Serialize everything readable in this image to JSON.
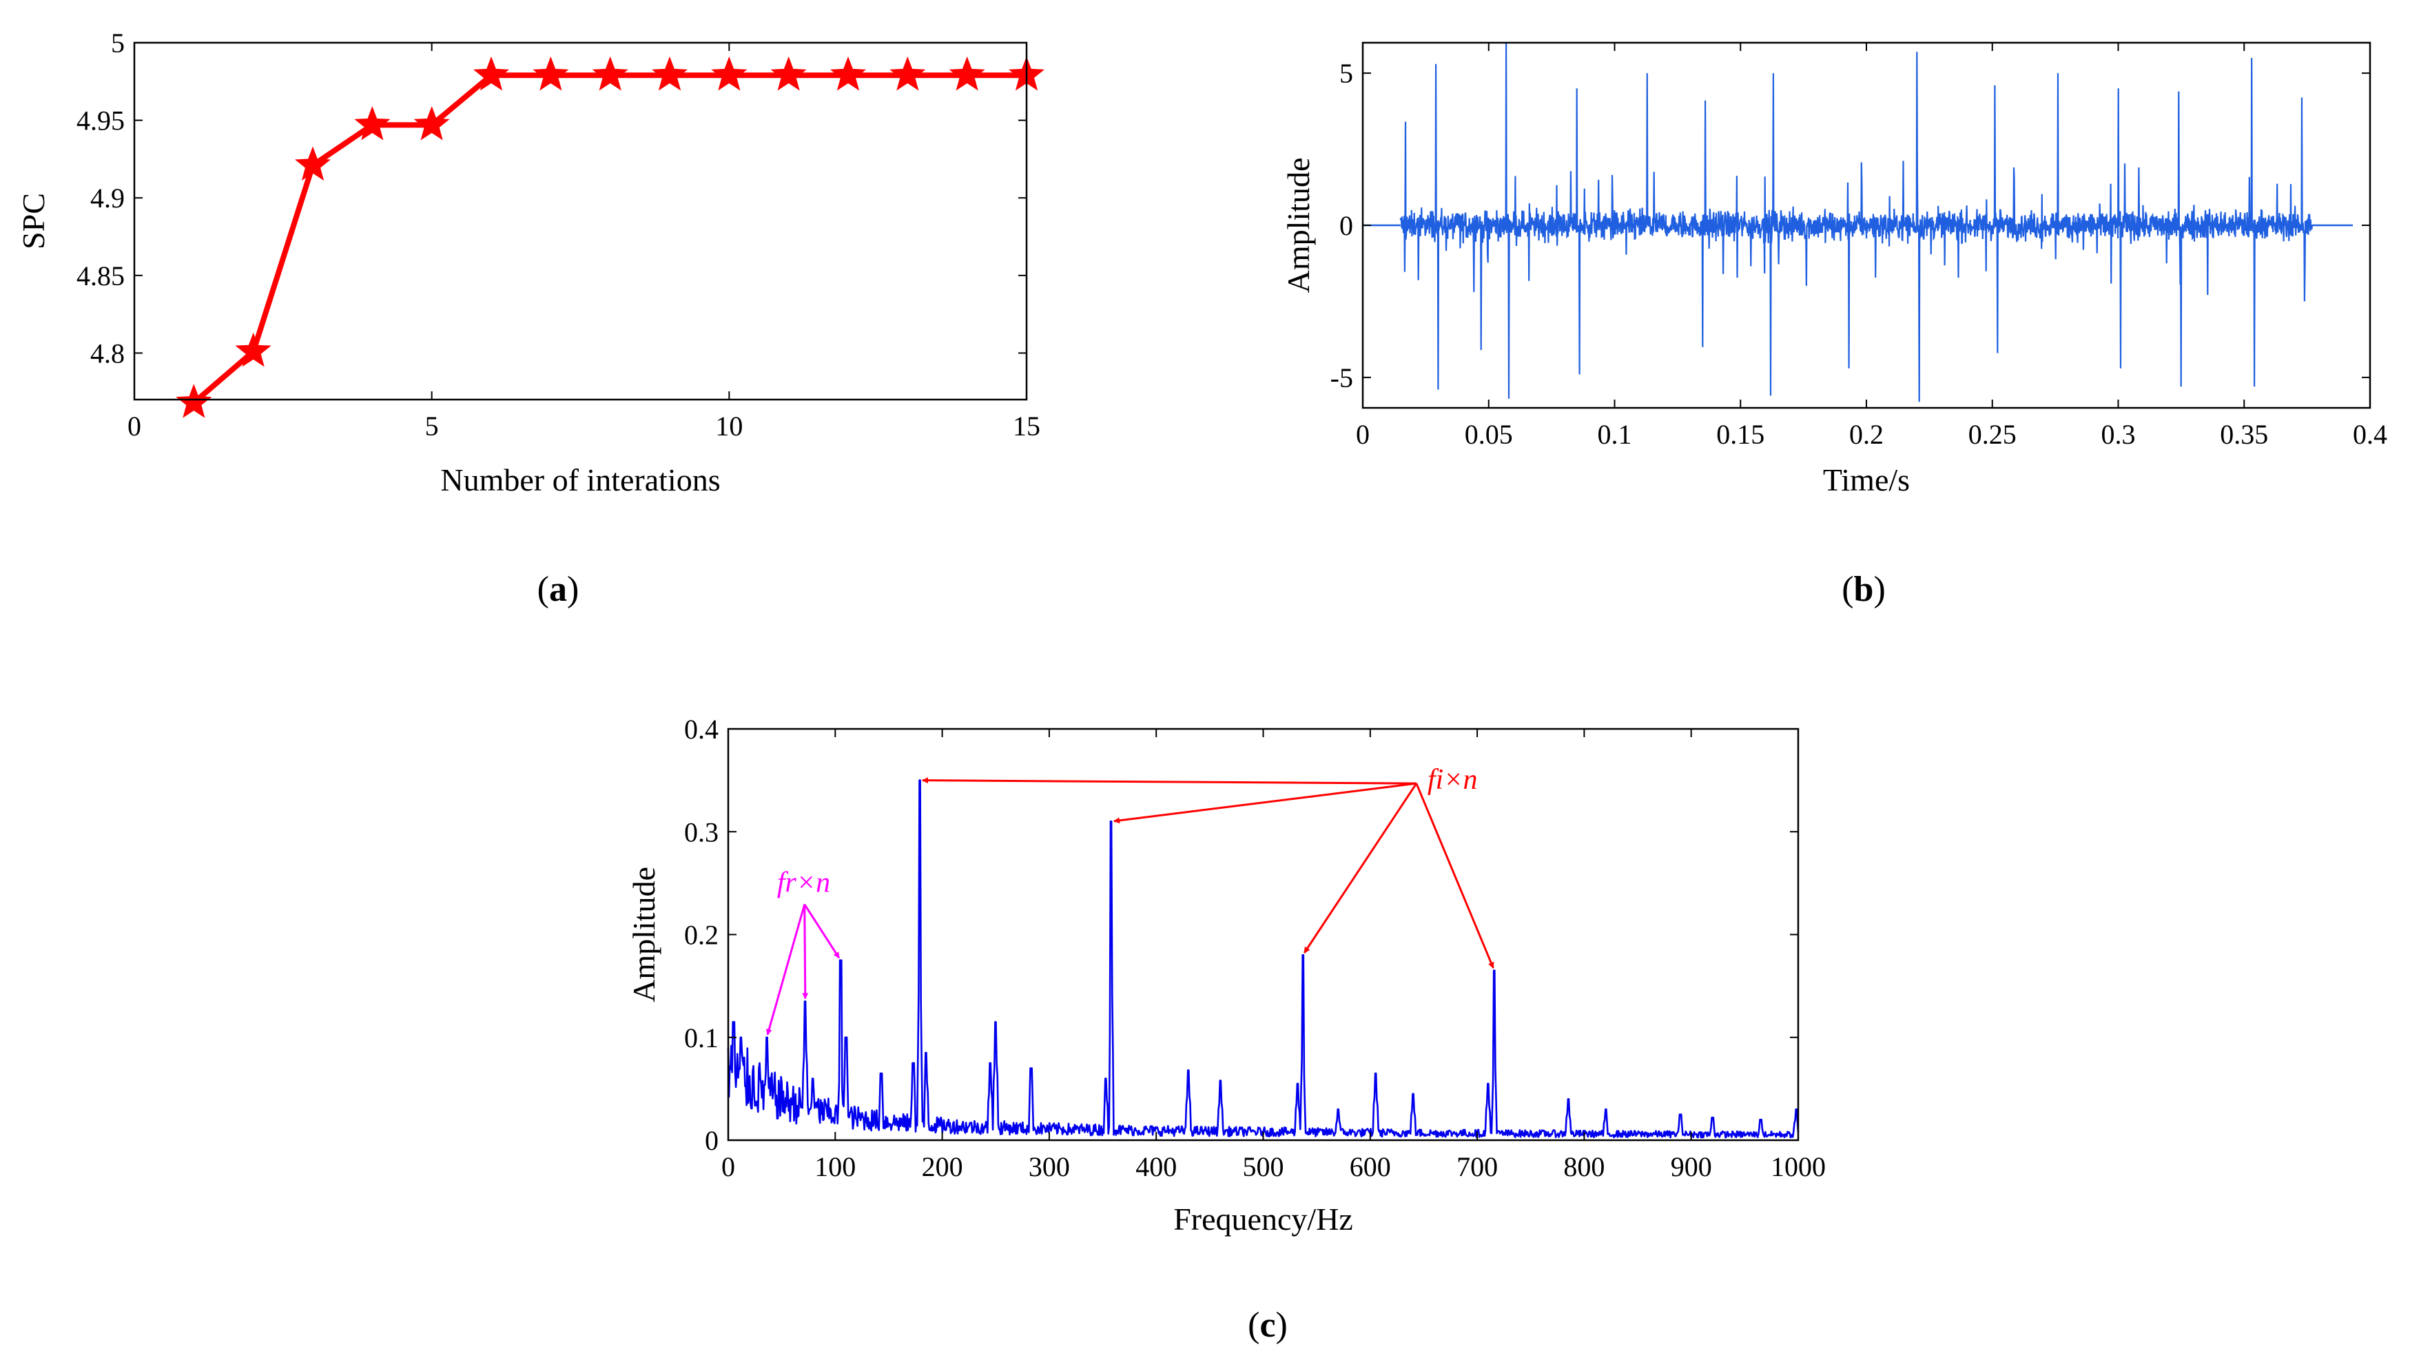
{
  "chart_data": [
    {
      "id": "a",
      "type": "line",
      "panel_label": "a",
      "xlabel": "Number of interations",
      "ylabel": "SPC",
      "xlim": [
        0,
        15
      ],
      "ylim": [
        4.77,
        5.0
      ],
      "xticks": [
        0,
        5,
        10,
        15
      ],
      "xtick_labels": [
        "0",
        "5",
        "10",
        "15"
      ],
      "yticks": [
        4.8,
        4.85,
        4.9,
        4.95,
        5.0
      ],
      "ytick_labels": [
        "4.8",
        "4.85",
        "4.9",
        "4.95",
        "5"
      ],
      "series": [
        {
          "name": "SPC",
          "color": "#ff0000",
          "marker": "star",
          "x": [
            1,
            2,
            3,
            4,
            5,
            6,
            7,
            8,
            9,
            10,
            11,
            12,
            13,
            14,
            15
          ],
          "values": [
            4.768,
            4.801,
            4.921,
            4.947,
            4.947,
            4.979,
            4.979,
            4.979,
            4.979,
            4.979,
            4.979,
            4.979,
            4.979,
            4.979,
            4.979
          ]
        }
      ]
    },
    {
      "id": "b",
      "type": "line",
      "panel_label": "b",
      "xlabel": "Time/s",
      "ylabel": "Amplitude",
      "xlim": [
        0,
        0.4
      ],
      "ylim": [
        -6,
        6
      ],
      "xticks": [
        0,
        0.05,
        0.1,
        0.15,
        0.2,
        0.25,
        0.3,
        0.35,
        0.4
      ],
      "xtick_labels": [
        "0",
        "0.05",
        "0.1",
        "0.15",
        "0.2",
        "0.25",
        "0.3",
        "0.35",
        "0.4"
      ],
      "yticks": [
        -5,
        0,
        5
      ],
      "ytick_labels": [
        "-5",
        "0",
        "5"
      ],
      "series": [
        {
          "name": "signal",
          "color": "#1f5fe0",
          "signal_start": 0.015,
          "signal_end": 0.377,
          "impulse_period": 0.0055,
          "impulse_peaks": [
            {
              "t": 0.017,
              "v": 3.4
            },
            {
              "t": 0.029,
              "v": 5.3
            },
            {
              "t": 0.03,
              "v": -5.4
            },
            {
              "t": 0.047,
              "v": -4.1
            },
            {
              "t": 0.057,
              "v": 6.0
            },
            {
              "t": 0.058,
              "v": -5.7
            },
            {
              "t": 0.085,
              "v": 4.5
            },
            {
              "t": 0.086,
              "v": -4.9
            },
            {
              "t": 0.113,
              "v": 5.0
            },
            {
              "t": 0.135,
              "v": -4.0
            },
            {
              "t": 0.136,
              "v": 4.1
            },
            {
              "t": 0.162,
              "v": -5.6
            },
            {
              "t": 0.163,
              "v": 5.0
            },
            {
              "t": 0.193,
              "v": -4.7
            },
            {
              "t": 0.22,
              "v": 5.7
            },
            {
              "t": 0.221,
              "v": -5.8
            },
            {
              "t": 0.251,
              "v": 4.6
            },
            {
              "t": 0.252,
              "v": -4.2
            },
            {
              "t": 0.276,
              "v": 5.0
            },
            {
              "t": 0.3,
              "v": 4.5
            },
            {
              "t": 0.301,
              "v": -4.7
            },
            {
              "t": 0.324,
              "v": 4.4
            },
            {
              "t": 0.325,
              "v": -5.3
            },
            {
              "t": 0.353,
              "v": 5.5
            },
            {
              "t": 0.354,
              "v": -5.3
            },
            {
              "t": 0.373,
              "v": 4.2
            },
            {
              "t": 0.374,
              "v": -2.5
            }
          ]
        }
      ]
    },
    {
      "id": "c",
      "type": "line",
      "panel_label": "c",
      "xlabel": "Frequency/Hz",
      "ylabel": "Amplitude",
      "xlim": [
        0,
        1000
      ],
      "ylim": [
        0,
        0.4
      ],
      "xticks": [
        0,
        100,
        200,
        300,
        400,
        500,
        600,
        700,
        800,
        900,
        1000
      ],
      "xtick_labels": [
        "0",
        "100",
        "200",
        "300",
        "400",
        "500",
        "600",
        "700",
        "800",
        "900",
        "1000"
      ],
      "yticks": [
        0,
        0.1,
        0.2,
        0.3,
        0.4
      ],
      "ytick_labels": [
        "0",
        "0.1",
        "0.2",
        "0.3",
        "0.4"
      ],
      "series": [
        {
          "name": "spectrum",
          "color": "#0000ee",
          "peaks": [
            {
              "f": 5,
              "a": 0.115
            },
            {
              "f": 12,
              "a": 0.1
            },
            {
              "f": 36,
              "a": 0.1
            },
            {
              "f": 72,
              "a": 0.135
            },
            {
              "f": 79,
              "a": 0.06
            },
            {
              "f": 105,
              "a": 0.175
            },
            {
              "f": 110,
              "a": 0.1
            },
            {
              "f": 143,
              "a": 0.065
            },
            {
              "f": 173,
              "a": 0.075
            },
            {
              "f": 179,
              "a": 0.35
            },
            {
              "f": 185,
              "a": 0.085
            },
            {
              "f": 250,
              "a": 0.115
            },
            {
              "f": 245,
              "a": 0.075
            },
            {
              "f": 283,
              "a": 0.07
            },
            {
              "f": 358,
              "a": 0.31
            },
            {
              "f": 353,
              "a": 0.06
            },
            {
              "f": 430,
              "a": 0.068
            },
            {
              "f": 460,
              "a": 0.058
            },
            {
              "f": 537,
              "a": 0.18
            },
            {
              "f": 532,
              "a": 0.055
            },
            {
              "f": 570,
              "a": 0.03
            },
            {
              "f": 605,
              "a": 0.065
            },
            {
              "f": 640,
              "a": 0.045
            },
            {
              "f": 710,
              "a": 0.055
            },
            {
              "f": 716,
              "a": 0.165
            },
            {
              "f": 785,
              "a": 0.04
            },
            {
              "f": 820,
              "a": 0.03
            },
            {
              "f": 890,
              "a": 0.025
            },
            {
              "f": 920,
              "a": 0.022
            },
            {
              "f": 965,
              "a": 0.02
            },
            {
              "f": 998,
              "a": 0.03
            }
          ]
        }
      ],
      "annotations": [
        {
          "id": "fi",
          "text": "fi×n",
          "color": "#ff0000",
          "anchor": {
            "f": 450,
            "a": 0.355
          },
          "targets": [
            {
              "f": 179,
              "a": 0.35
            },
            {
              "f": 358,
              "a": 0.31
            },
            {
              "f": 537,
              "a": 0.18
            },
            {
              "f": 716,
              "a": 0.165
            }
          ]
        },
        {
          "id": "fr",
          "text": "fr×n",
          "color": "#ff00ff",
          "anchor": {
            "f": 52,
            "a": 0.22
          },
          "targets": [
            {
              "f": 36,
              "a": 0.1
            },
            {
              "f": 72,
              "a": 0.135
            },
            {
              "f": 105,
              "a": 0.175
            }
          ]
        }
      ]
    }
  ]
}
